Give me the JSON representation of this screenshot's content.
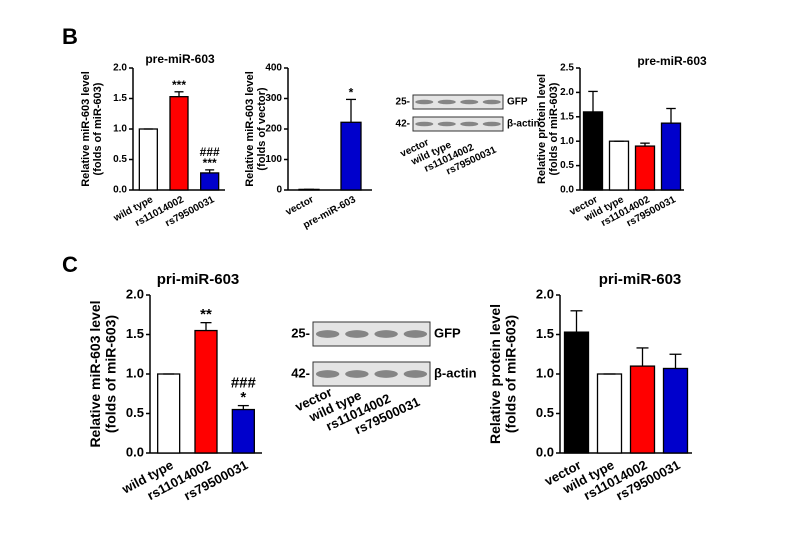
{
  "panel_labels": [
    "B",
    "C"
  ],
  "chart_data": [
    {
      "type": "bar",
      "title": "pre-miR-603",
      "ylabel": [
        "Relative miR-603 level",
        "(folds of miR-603)"
      ],
      "categories": [
        "wild type",
        "rs11014002",
        "rs79500031"
      ],
      "values": [
        1.0,
        1.53,
        0.28
      ],
      "errors": [
        0,
        0.08,
        0.05
      ],
      "colors": [
        "#ffffff",
        "#ff0000",
        "#0000cc"
      ],
      "annotations": [
        [],
        [
          "***"
        ],
        [
          "###",
          "***"
        ]
      ],
      "ylim": [
        0,
        2
      ],
      "yticks": [
        {
          "value": 0,
          "label": "0.0"
        },
        {
          "value": 0.5,
          "label": "0.5"
        },
        {
          "value": 1,
          "label": "1.0"
        },
        {
          "value": 1.5,
          "label": "1.5"
        },
        {
          "value": 2,
          "label": "2.0"
        }
      ]
    },
    {
      "type": "bar",
      "ylabel": [
        "Relative miR-603 level",
        "(folds of vector)"
      ],
      "categories": [
        "vector",
        "pre-miR-603"
      ],
      "values": [
        2,
        222
      ],
      "errors": [
        0,
        75
      ],
      "colors": [
        "#ffffff",
        "#0000cc"
      ],
      "annotations": [
        [],
        [
          "*"
        ]
      ],
      "ylim": [
        0,
        400
      ],
      "yticks": [
        0,
        100,
        200,
        300,
        400
      ]
    },
    {
      "type": "bar",
      "title": "pre-miR-603",
      "ylabel": [
        "Relative protein level",
        "(folds of miR-603)"
      ],
      "categories": [
        "vector",
        "wild type",
        "rs11014002",
        "rs79500031"
      ],
      "values": [
        1.6,
        1.0,
        0.9,
        1.37
      ],
      "errors": [
        0.42,
        0,
        0.06,
        0.3
      ],
      "colors": [
        "#000000",
        "#ffffff",
        "#ff0000",
        "#0000cc"
      ],
      "annotations": [
        [],
        [],
        [],
        []
      ],
      "ylim": [
        0,
        2.5
      ],
      "yticks": [
        {
          "value": 0,
          "label": "0.0"
        },
        {
          "value": 0.5,
          "label": "0.5"
        },
        {
          "value": 1,
          "label": "1.0"
        },
        {
          "value": 1.5,
          "label": "1.5"
        },
        {
          "value": 2,
          "label": "2.0"
        },
        {
          "value": 2.5,
          "label": "2.5"
        }
      ]
    },
    {
      "type": "bar",
      "title": "pri-miR-603",
      "ylabel": [
        "Relative miR-603 level",
        "(folds of miR-603)"
      ],
      "categories": [
        "wild type",
        "rs11014002",
        "rs79500031"
      ],
      "values": [
        1.0,
        1.55,
        0.55
      ],
      "errors": [
        0,
        0.1,
        0.05
      ],
      "colors": [
        "#ffffff",
        "#ff0000",
        "#0000cc"
      ],
      "annotations": [
        [],
        [
          "**"
        ],
        [
          "###",
          "*"
        ]
      ],
      "ylim": [
        0,
        2
      ],
      "yticks": [
        {
          "value": 0,
          "label": "0.0"
        },
        {
          "value": 0.5,
          "label": "0.5"
        },
        {
          "value": 1,
          "label": "1.0"
        },
        {
          "value": 1.5,
          "label": "1.5"
        },
        {
          "value": 2,
          "label": "2.0"
        }
      ]
    },
    {
      "type": "bar",
      "title": "pri-miR-603",
      "ylabel": [
        "Relative protein level",
        "(folds of miR-603)"
      ],
      "categories": [
        "vector",
        "wild type",
        "rs11014002",
        "rs79500031"
      ],
      "values": [
        1.53,
        1.0,
        1.1,
        1.07
      ],
      "errors": [
        0.27,
        0,
        0.23,
        0.18
      ],
      "colors": [
        "#000000",
        "#ffffff",
        "#ff0000",
        "#0000cc"
      ],
      "annotations": [
        [],
        [],
        [],
        []
      ],
      "ylim": [
        0,
        2
      ],
      "yticks": [
        {
          "value": 0,
          "label": "0.0"
        },
        {
          "value": 0.5,
          "label": "0.5"
        },
        {
          "value": 1,
          "label": "1.0"
        },
        {
          "value": 1.5,
          "label": "1.5"
        },
        {
          "value": 2,
          "label": "2.0"
        }
      ]
    }
  ],
  "blots": [
    {
      "markers": [
        "25-",
        "42-"
      ],
      "proteins": [
        "GFP",
        "β-actin"
      ],
      "lanes": [
        "vector",
        "wild type",
        "rs11014002",
        "rs79500031"
      ]
    },
    {
      "markers": [
        "25-",
        "42-"
      ],
      "proteins": [
        "GFP",
        "β-actin"
      ],
      "lanes": [
        "vector",
        "wild type",
        "rs11014002",
        "rs79500031"
      ]
    }
  ]
}
